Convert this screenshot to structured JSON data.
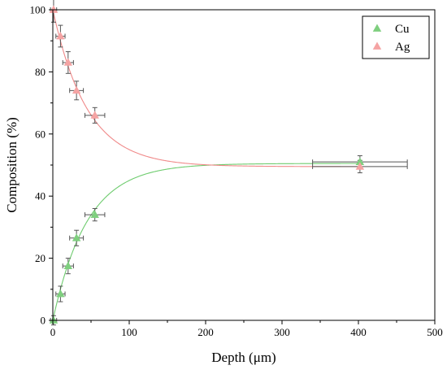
{
  "chart_data": {
    "type": "scatter",
    "xlabel": "Depth (μm)",
    "ylabel": "Composition (%)",
    "xlim": [
      0,
      500
    ],
    "ylim": [
      0,
      100
    ],
    "xticks": [
      0,
      100,
      200,
      300,
      400,
      500
    ],
    "yticks": [
      0,
      20,
      40,
      60,
      80,
      100
    ],
    "grid": false,
    "legend_position": "top-right",
    "series": [
      {
        "name": "Cu",
        "color": "#7fcf7f",
        "marker": "triangle",
        "points": [
          {
            "x": 1,
            "y": 0,
            "xerr": 4,
            "yerr": 1.5
          },
          {
            "x": 10,
            "y": 8.5,
            "xerr": 6,
            "yerr": 2.5
          },
          {
            "x": 20,
            "y": 17.5,
            "xerr": 7,
            "yerr": 2.5
          },
          {
            "x": 31,
            "y": 26.5,
            "xerr": 9,
            "yerr": 2.5
          },
          {
            "x": 55,
            "y": 34,
            "xerr": 13,
            "yerr": 2
          },
          {
            "x": 402,
            "y": 51,
            "xerr": 62,
            "yerr": 2
          }
        ],
        "fit_curve": {
          "type": "exponential",
          "y0": 0,
          "plateau": 50.5,
          "tau": 45
        },
        "fit_color": "#6fcc6f"
      },
      {
        "name": "Ag",
        "color": "#f5a3a3",
        "marker": "triangle",
        "points": [
          {
            "x": 1,
            "y": 100,
            "xerr": 4,
            "yerr": 4
          },
          {
            "x": 10,
            "y": 91.5,
            "xerr": 6,
            "yerr": 3.5
          },
          {
            "x": 20,
            "y": 83,
            "xerr": 7,
            "yerr": 3.5
          },
          {
            "x": 31,
            "y": 74,
            "xerr": 9,
            "yerr": 3
          },
          {
            "x": 55,
            "y": 66,
            "xerr": 13,
            "yerr": 2.5
          },
          {
            "x": 402,
            "y": 49.5,
            "xerr": 62,
            "yerr": 2
          }
        ],
        "fit_curve": {
          "type": "exponential",
          "y0": 100,
          "plateau": 49.5,
          "tau": 45
        },
        "fit_color": "#f08a8a"
      }
    ]
  }
}
